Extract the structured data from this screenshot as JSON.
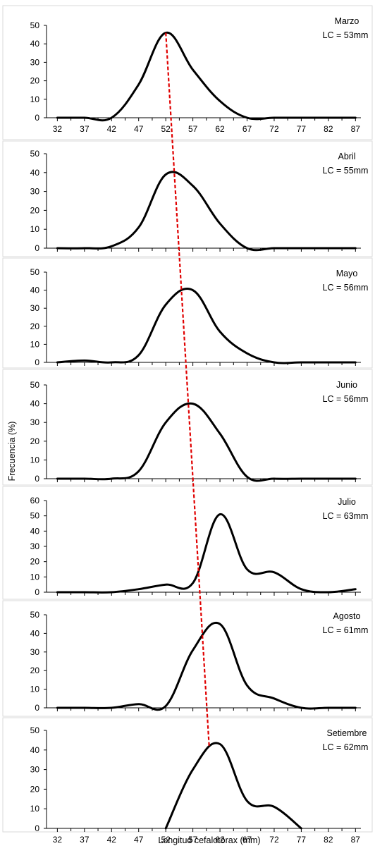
{
  "chart_data": {
    "type": "line",
    "ylabel": "Frecuencia (%)",
    "xlabel": "Longitud cefalotórax (mm)",
    "x": [
      32,
      37,
      42,
      47,
      52,
      57,
      62,
      67,
      72,
      77,
      82,
      87
    ],
    "xlim": [
      30,
      88
    ],
    "x_ticks": [
      32,
      37,
      42,
      47,
      52,
      57,
      62,
      67,
      72,
      77,
      82,
      87
    ],
    "line_color": "#000000",
    "trend_color": "#e00000",
    "grid": false,
    "panels": [
      {
        "title": "Marzo",
        "subtitle": "LC = 53mm",
        "ylim": [
          0,
          50
        ],
        "yticks": [
          0,
          10,
          20,
          30,
          40,
          50
        ],
        "show_x_ticks": true,
        "values": [
          0,
          0,
          0,
          18,
          46,
          26,
          9,
          0,
          0,
          0,
          0,
          0
        ],
        "mode_x": 52
      },
      {
        "title": "Abril",
        "subtitle": "LC = 55mm",
        "ylim": [
          0,
          50
        ],
        "yticks": [
          0,
          10,
          20,
          30,
          40,
          50
        ],
        "show_x_ticks": false,
        "values": [
          0,
          0,
          1,
          11,
          39,
          33,
          13,
          0,
          0,
          0,
          0,
          0
        ],
        "mode_x": 54
      },
      {
        "title": "Mayo",
        "subtitle": "LC = 56mm",
        "ylim": [
          0,
          50
        ],
        "yticks": [
          0,
          10,
          20,
          30,
          40,
          50
        ],
        "show_x_ticks": false,
        "values": [
          0,
          1,
          0,
          4,
          32,
          40,
          17,
          5,
          0,
          0,
          0,
          0
        ],
        "mode_x": 55
      },
      {
        "title": "Junio",
        "subtitle": "LC = 56mm",
        "ylim": [
          0,
          50
        ],
        "yticks": [
          0,
          10,
          20,
          30,
          40,
          50
        ],
        "show_x_ticks": false,
        "values": [
          0,
          0,
          0,
          4,
          30,
          40,
          24,
          1,
          0,
          0,
          0,
          0
        ],
        "mode_x": 57
      },
      {
        "title": "Julio",
        "subtitle": "LC = 63mm",
        "ylim": [
          0,
          60
        ],
        "yticks": [
          0,
          10,
          20,
          30,
          40,
          50,
          60
        ],
        "show_x_ticks": false,
        "values": [
          0,
          0,
          0,
          2,
          5,
          6,
          51,
          15,
          13,
          2,
          0,
          2
        ],
        "mode_x": 58
      },
      {
        "title": "Agosto",
        "subtitle": "LC = 61mm",
        "ylim": [
          0,
          50
        ],
        "yticks": [
          0,
          10,
          20,
          30,
          40,
          50
        ],
        "show_x_ticks": false,
        "values": [
          0,
          0,
          0,
          2,
          1,
          31,
          45,
          12,
          5,
          0,
          0,
          0
        ],
        "mode_x": 59
      },
      {
        "title": "Setiembre",
        "subtitle": "LC = 62mm",
        "ylim": [
          0,
          50
        ],
        "yticks": [
          0,
          10,
          20,
          30,
          40,
          50
        ],
        "show_x_ticks": true,
        "values": [
          null,
          null,
          null,
          null,
          0,
          30,
          43,
          14,
          11,
          0,
          null,
          null
        ],
        "mode_x": 60
      }
    ]
  }
}
